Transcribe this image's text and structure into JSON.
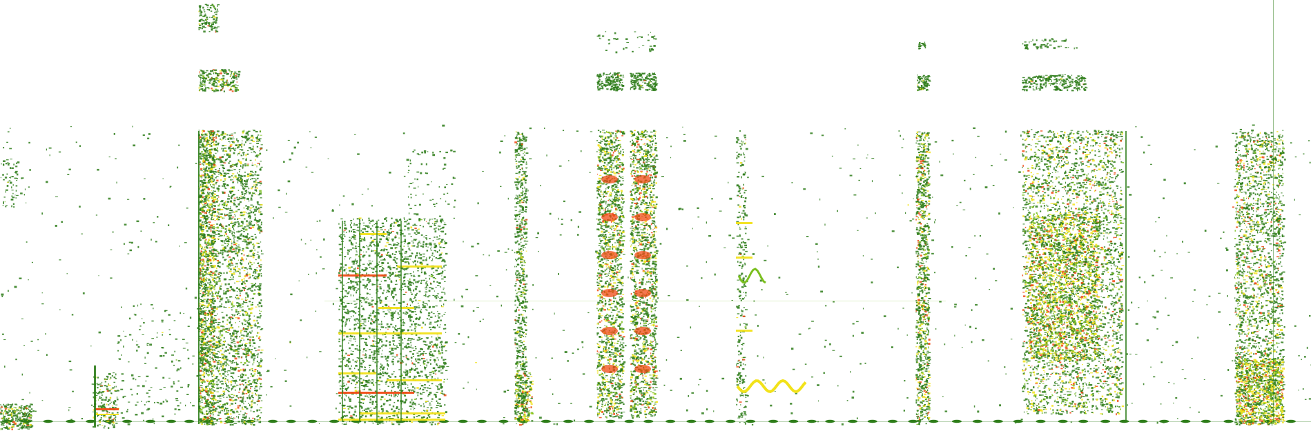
{
  "view": {
    "type": "spectrogram",
    "axes_shown": false,
    "labels_shown": false,
    "background": "#ffffff"
  },
  "palette": {
    "low": "#2e7d1a",
    "mid": "#7bbf1f",
    "high": "#f2e21a",
    "peak": "#f04a14"
  },
  "events": [
    {
      "id": "event-1",
      "kind": "low-noise-burst"
    },
    {
      "id": "event-2",
      "kind": "short-chirp"
    },
    {
      "id": "event-3",
      "kind": "broadband-burst"
    },
    {
      "id": "event-4",
      "kind": "harmonic-block"
    },
    {
      "id": "event-5",
      "kind": "narrow-impulse"
    },
    {
      "id": "event-6",
      "kind": "paired-impulse-train"
    },
    {
      "id": "event-7",
      "kind": "warbling-tone"
    },
    {
      "id": "event-8",
      "kind": "narrow-impulse"
    },
    {
      "id": "event-9",
      "kind": "broadband-burst"
    },
    {
      "id": "event-10",
      "kind": "broadband-burst"
    }
  ]
}
